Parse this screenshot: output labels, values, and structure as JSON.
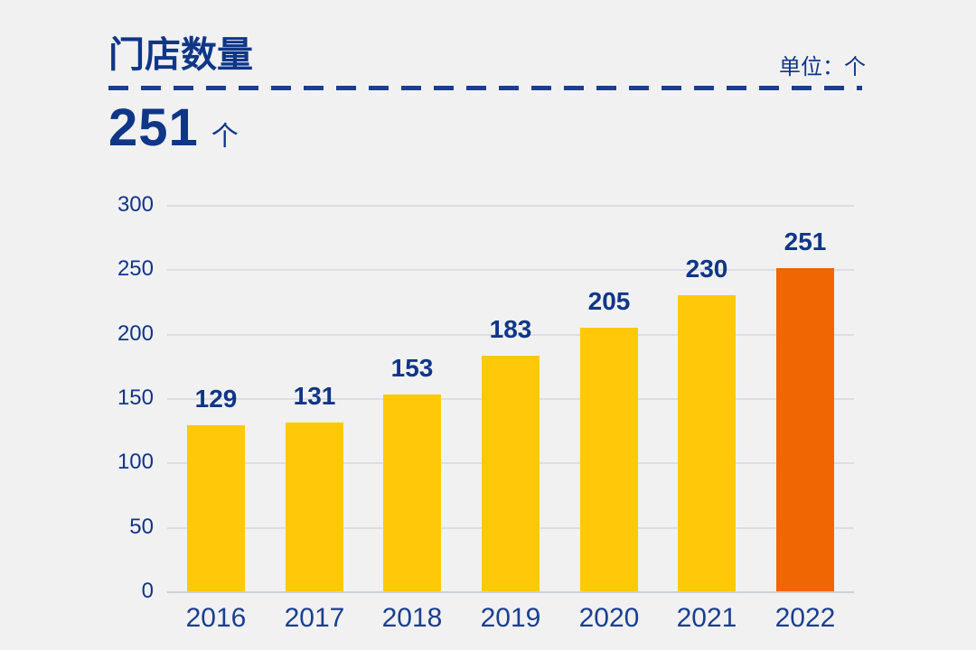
{
  "colors": {
    "background": "#F1F1F2",
    "navy_text": "#0F3687",
    "bar_yellow": "#FFC90A",
    "bar_orange": "#EF6603",
    "gridline": "#DDDEE2",
    "baseline": "#CDD0D4"
  },
  "header": {
    "title": "门店数量",
    "unit_label": "单位：个",
    "headline_value": "251",
    "headline_unit": "个"
  },
  "chart_data": {
    "type": "bar",
    "title": "门店数量",
    "unit": "个",
    "categories": [
      "2016",
      "2017",
      "2018",
      "2019",
      "2020",
      "2021",
      "2022"
    ],
    "values": [
      129,
      131,
      153,
      183,
      205,
      230,
      251
    ],
    "bar_colors": [
      "#FFC90A",
      "#FFC90A",
      "#FFC90A",
      "#FFC90A",
      "#FFC90A",
      "#FFC90A",
      "#EF6603"
    ],
    "highlight_index": 6,
    "xlabel": "",
    "ylabel": "",
    "ylim": [
      0,
      300
    ],
    "yticks": [
      0,
      50,
      100,
      150,
      200,
      250,
      300
    ],
    "grid": true,
    "legend": null
  }
}
